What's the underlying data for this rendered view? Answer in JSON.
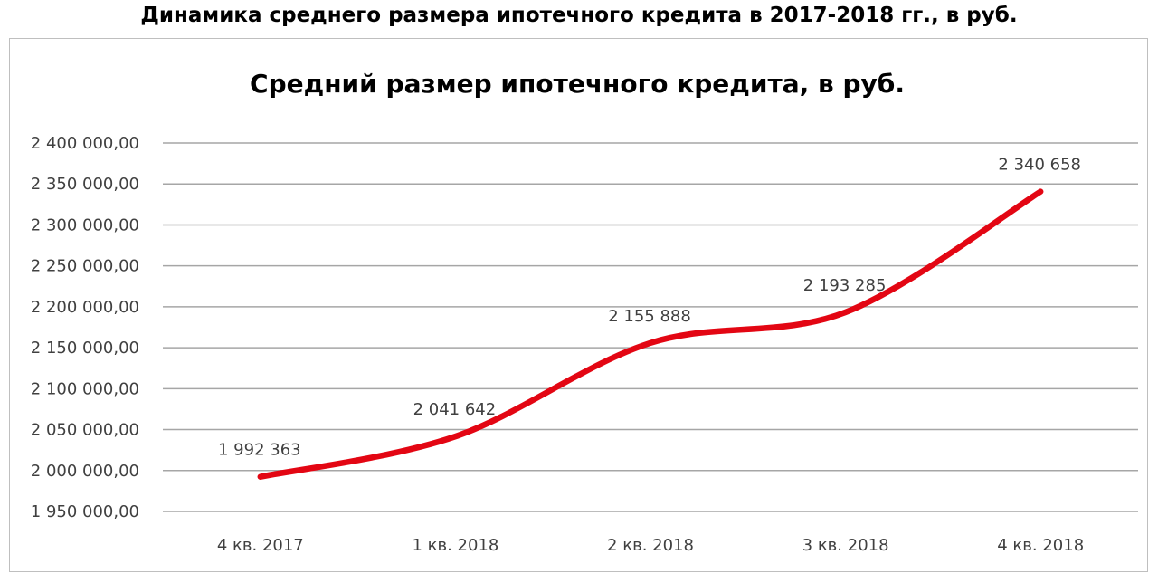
{
  "page": {
    "heading": "Динамика среднего размера ипотечного кредита в 2017-2018 гг., в руб."
  },
  "chart_data": {
    "type": "line",
    "title": "Средний размер ипотечного кредита, в руб.",
    "xlabel": "",
    "ylabel": "",
    "categories": [
      "4 кв. 2017",
      "1 кв. 2018",
      "2 кв. 2018",
      "3 кв. 2018",
      "4 кв. 2018"
    ],
    "series": [
      {
        "values": [
          1992363,
          2041642,
          2155888,
          2193285,
          2340658
        ],
        "data_labels": [
          "1 992 363",
          "2 041 642",
          "2 155 888",
          "2 193 285",
          "2 340 658"
        ],
        "color": "#e30613",
        "smooth": true
      }
    ],
    "ylim": [
      1950000,
      2400000
    ],
    "yticks": [
      1950000,
      2000000,
      2050000,
      2100000,
      2150000,
      2200000,
      2250000,
      2300000,
      2350000,
      2400000
    ],
    "ytick_labels": [
      "1 950 000,00",
      "2 000 000,00",
      "2 050 000,00",
      "2 100 000,00",
      "2 150 000,00",
      "2 200 000,00",
      "2 250 000,00",
      "2 300 000,00",
      "2 350 000,00",
      "2 400 000,00"
    ],
    "grid": true,
    "legend": "none",
    "gridline_color": "#a6a6a6",
    "line_color": "#e30613"
  }
}
